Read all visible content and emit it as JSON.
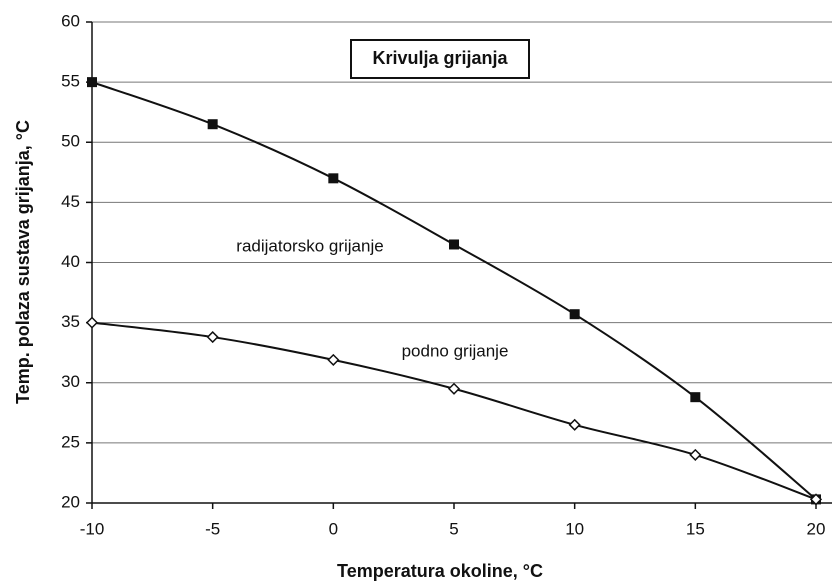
{
  "chart_data": {
    "type": "line",
    "title": "Krivulja grijanja",
    "xlabel": "Temperatura okoline, °C",
    "ylabel": "Temp. polaza sustava grijanja, °C",
    "x": [
      -10,
      -5,
      0,
      5,
      10,
      15,
      20
    ],
    "series": [
      {
        "name": "radijatorsko grijanje",
        "color": "#111111",
        "marker": "square",
        "values": [
          55,
          51.5,
          47,
          41.5,
          35.7,
          28.8,
          20.3
        ]
      },
      {
        "name": "podno grijanje",
        "color": "#111111",
        "marker": "diamond",
        "values": [
          35,
          33.8,
          31.9,
          29.5,
          26.5,
          24,
          20.3
        ]
      }
    ],
    "xlim": [
      -10,
      20
    ],
    "xticks": [
      -10,
      -5,
      0,
      5,
      10,
      15,
      20
    ],
    "ylim": [
      20,
      60
    ],
    "yticks": [
      20,
      25,
      30,
      35,
      40,
      45,
      50,
      55,
      60
    ],
    "grid": true
  }
}
